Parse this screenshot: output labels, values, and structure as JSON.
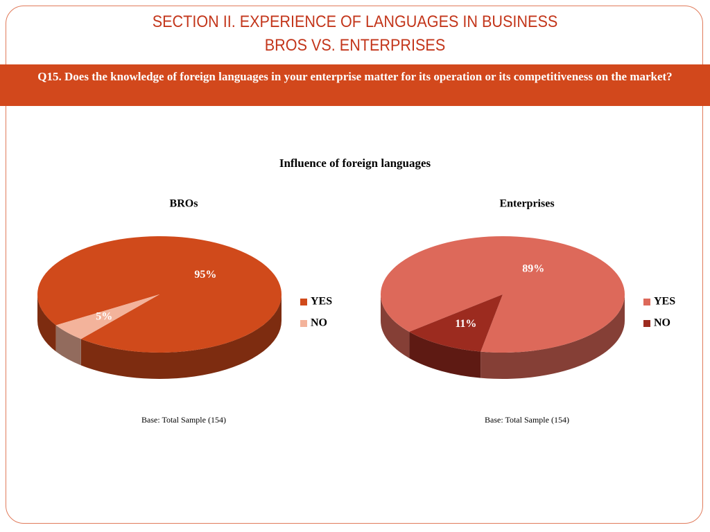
{
  "header": {
    "title_line1": "SECTION II. EXPERIENCE OF LANGUAGES IN BUSINESS",
    "title_line2": "BROS VS. ENTERPRISES",
    "question": "Q15. Does the knowledge of foreign languages in your enterprise matter for its operation or its competitiveness on the market?"
  },
  "figure_title": "Influence of foreign languages",
  "chart_data": [
    {
      "type": "pie",
      "title": "BROs",
      "categories": [
        "YES",
        "NO"
      ],
      "values": [
        95,
        5
      ],
      "value_labels": [
        "95%",
        "5%"
      ],
      "colors": [
        "#d04a1b",
        "#f3b39b"
      ],
      "footnote": "Base: Total Sample (154)"
    },
    {
      "type": "pie",
      "title": "Enterprises",
      "categories": [
        "YES",
        "NO"
      ],
      "values": [
        89,
        11
      ],
      "value_labels": [
        "89%",
        "11%"
      ],
      "colors": [
        "#dd695a",
        "#9c2b1f"
      ],
      "footnote": "Base: Total Sample (154)"
    }
  ]
}
